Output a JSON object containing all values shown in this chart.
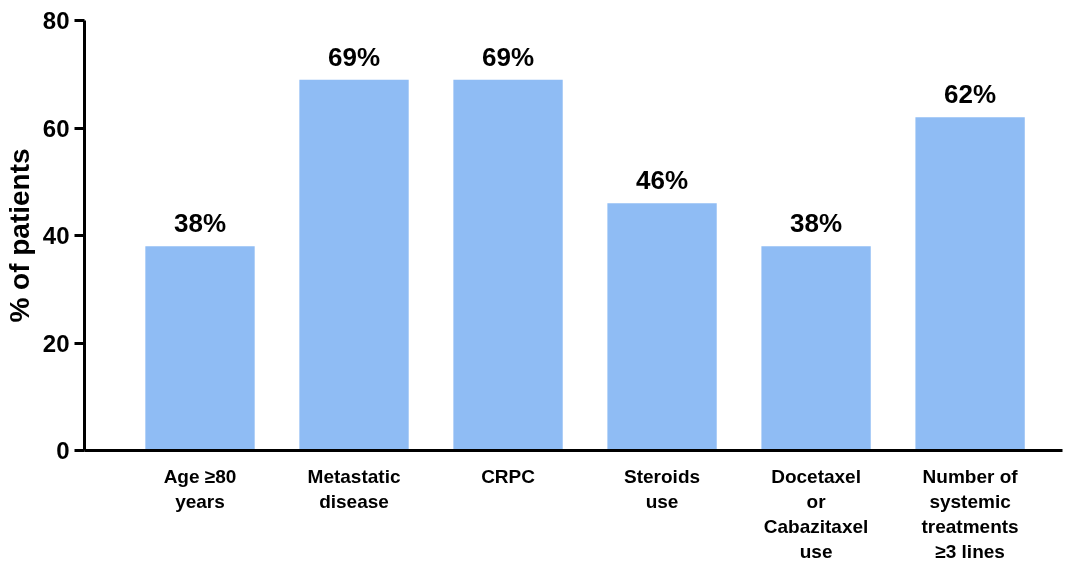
{
  "chart_data": {
    "type": "bar",
    "ylabel": "% of patients",
    "categories": [
      "Age ≥80\nyears",
      "Metastatic\ndisease",
      "CRPC",
      "Steroids\nuse",
      "Docetaxel\nor\nCabazitaxel\nuse",
      "Number of\nsystemic\ntreatments\n≥3 lines"
    ],
    "values": [
      38,
      69,
      69,
      46,
      38,
      62
    ],
    "value_labels": [
      "38%",
      "69%",
      "69%",
      "46%",
      "38%",
      "62%"
    ],
    "color": "#8fbcf4",
    "ylim": [
      0,
      80
    ],
    "yticks": [
      0,
      20,
      40,
      60,
      80
    ],
    "grid": false
  }
}
